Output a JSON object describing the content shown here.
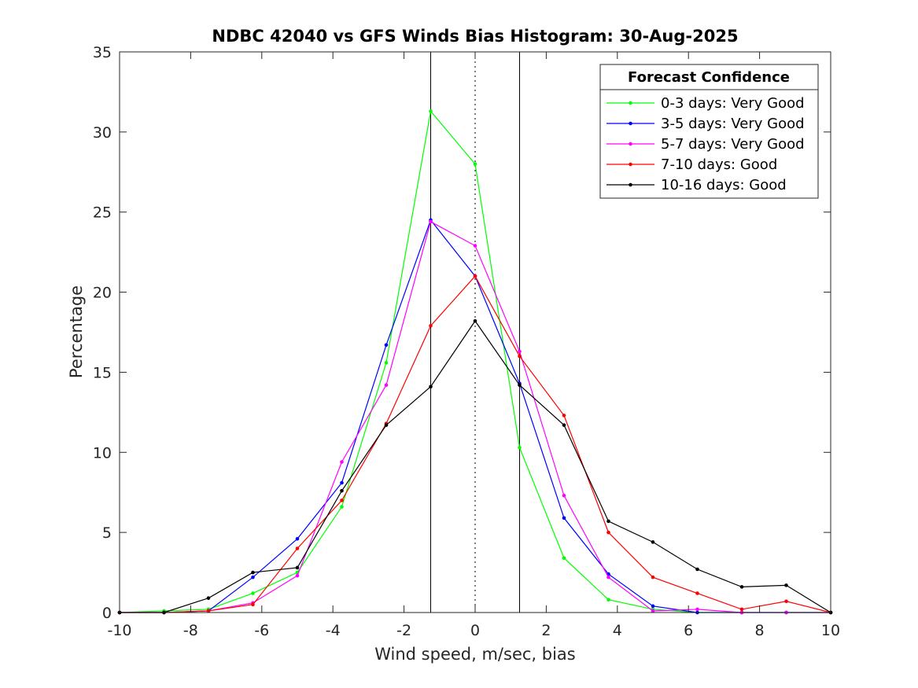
{
  "chart_data": {
    "type": "line",
    "title": "NDBC 42040 vs GFS Winds Bias Histogram: 30-Aug-2025",
    "xlabel": "Wind speed, m/sec, bias",
    "ylabel": "Percentage",
    "xlim": [
      -10,
      10
    ],
    "ylim": [
      0,
      35
    ],
    "xticks": [
      -10,
      -8,
      -6,
      -4,
      -2,
      0,
      2,
      4,
      6,
      8,
      10
    ],
    "yticks": [
      0,
      5,
      10,
      15,
      20,
      25,
      30,
      35
    ],
    "grid": false,
    "x": [
      -10,
      -8.75,
      -7.5,
      -6.25,
      -5,
      -3.75,
      -2.5,
      -1.25,
      0,
      1.25,
      2.5,
      3.75,
      5,
      6.25,
      7.5,
      8.75,
      10
    ],
    "series": [
      {
        "name": "0-3 days: Very Good",
        "color": "#00ff00",
        "values": [
          0,
          0.1,
          0.2,
          1.2,
          2.5,
          6.6,
          15.6,
          31.3,
          28.0,
          10.3,
          3.4,
          0.8,
          0.2,
          0,
          0,
          0,
          0
        ]
      },
      {
        "name": "3-5 days: Very Good",
        "color": "#0000ff",
        "values": [
          0,
          0,
          0.1,
          2.2,
          4.6,
          8.1,
          16.7,
          24.5,
          21.0,
          14.3,
          5.9,
          2.4,
          0.4,
          0,
          0,
          0,
          0
        ]
      },
      {
        "name": "5-7 days: Very Good",
        "color": "#ff00ff",
        "values": [
          0,
          0,
          0.1,
          0.6,
          2.3,
          9.4,
          14.2,
          24.4,
          22.9,
          16.3,
          7.3,
          2.2,
          0.1,
          0.2,
          0,
          0,
          0
        ]
      },
      {
        "name": "7-10 days: Good",
        "color": "#ff0000",
        "values": [
          0,
          0,
          0.1,
          0.5,
          4.0,
          7.0,
          11.8,
          17.9,
          21.0,
          16.0,
          12.3,
          5.0,
          2.2,
          1.2,
          0.2,
          0.7,
          0
        ]
      },
      {
        "name": "10-16 days: Good",
        "color": "#000000",
        "values": [
          0,
          0,
          0.9,
          2.5,
          2.8,
          7.6,
          11.7,
          14.1,
          18.2,
          14.2,
          11.7,
          5.7,
          4.4,
          2.7,
          1.6,
          1.7,
          0
        ]
      }
    ],
    "vlines": [
      {
        "x": -1.25,
        "style": "solid"
      },
      {
        "x": 0,
        "style": "dotted"
      },
      {
        "x": 1.25,
        "style": "solid"
      }
    ],
    "legend": {
      "title": "Forecast Confidence",
      "placement": "top-right"
    }
  }
}
